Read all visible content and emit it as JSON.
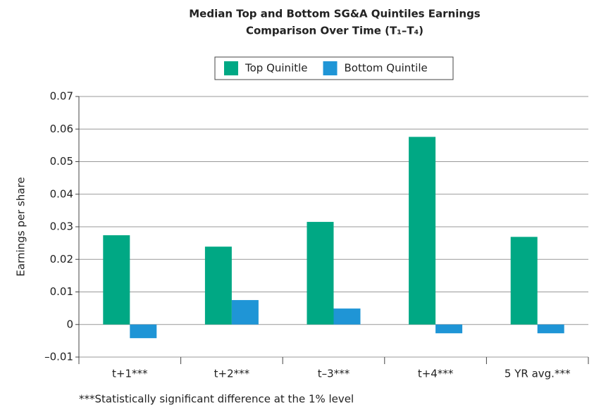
{
  "chart_data": {
    "type": "bar",
    "title": [
      "Median Top and Bottom SG&A Quintiles Earnings",
      "Comparison Over Time (T₁–T₄)"
    ],
    "y_label": "Earnings per share",
    "footnote": "***Statistically significant difference at the 1% level",
    "categories": [
      "t+1***",
      "t+2***",
      "t–3***",
      "t+4***",
      "5 YR avg.***"
    ],
    "series": [
      {
        "name": "Top Quinitle",
        "color": "#00a884",
        "values": [
          0.0274,
          0.0239,
          0.0315,
          0.0576,
          0.0269
        ]
      },
      {
        "name": "Bottom Quintile",
        "color": "#1f95d6",
        "values": [
          -0.0042,
          0.0075,
          0.0049,
          -0.0027,
          -0.0027
        ]
      }
    ],
    "ylim": [
      -0.01,
      0.07
    ],
    "yticks": [
      {
        "value": -0.01,
        "label": "–0.01"
      },
      0,
      0.01,
      0.02,
      0.03,
      0.04,
      0.05,
      0.06,
      0.07
    ],
    "grid": true,
    "legend": "top"
  }
}
